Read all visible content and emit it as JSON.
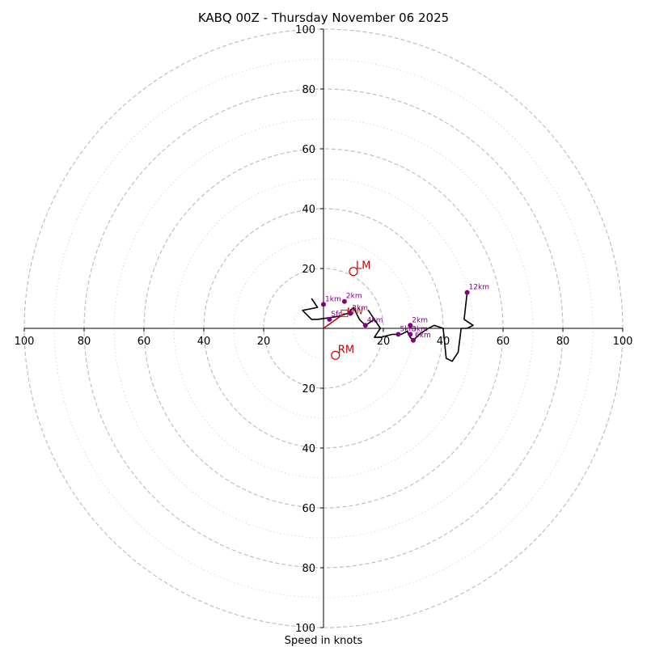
{
  "chart_data": {
    "type": "hodograph",
    "title": "KABQ 00Z - Thursday November 06 2025",
    "xlabel": "Speed in knots",
    "rings": [
      10,
      20,
      30,
      40,
      50,
      60,
      70,
      80,
      90,
      100
    ],
    "ring_labels": [
      "20",
      "40",
      "60",
      "80",
      "100"
    ],
    "axis_limit": 100,
    "colors": {
      "trace": "#000000",
      "markers": "#800080",
      "motion": "#cc0000",
      "grid": "#bbbbbb"
    },
    "hodograph_trace": [
      [
        -4,
        10
      ],
      [
        -2,
        7
      ],
      [
        -7,
        6
      ],
      [
        -4,
        3
      ],
      [
        -2,
        3
      ],
      [
        5,
        4
      ],
      [
        8,
        5
      ],
      [
        10,
        7
      ],
      [
        12,
        3
      ],
      [
        14,
        1
      ],
      [
        17,
        3
      ],
      [
        15,
        6
      ],
      [
        19,
        0
      ],
      [
        17,
        -3
      ],
      [
        19,
        -3
      ],
      [
        23,
        -2
      ],
      [
        26,
        -2
      ],
      [
        28,
        -1
      ],
      [
        29,
        -3
      ],
      [
        30,
        -4
      ],
      [
        32,
        -2
      ],
      [
        35,
        0
      ],
      [
        37,
        1
      ],
      [
        40,
        0
      ],
      [
        41,
        -10
      ],
      [
        43,
        -11
      ],
      [
        45,
        -8
      ],
      [
        46,
        0
      ],
      [
        48,
        0
      ],
      [
        50,
        1
      ],
      [
        47,
        3
      ],
      [
        48,
        12
      ]
    ],
    "markers": [
      {
        "label": "Sfc",
        "u": 2,
        "v": 3
      },
      {
        "label": "1km",
        "u": 0,
        "v": 8
      },
      {
        "label": "2km",
        "u": 7,
        "v": 9
      },
      {
        "label": "3km",
        "u": 9,
        "v": 5
      },
      {
        "label": "4km",
        "u": 14,
        "v": 1
      },
      {
        "label": "5km",
        "u": 25,
        "v": -2
      },
      {
        "label": "2km",
        "u": 29,
        "v": 1
      },
      {
        "label": "3km",
        "u": 29,
        "v": -2
      },
      {
        "label": "6km",
        "u": 30,
        "v": -4
      },
      {
        "label": "12km",
        "u": 48,
        "v": 12
      }
    ],
    "storm_motion": [
      {
        "label": "LM",
        "u": 10,
        "v": 19
      },
      {
        "label": "RM",
        "u": 4,
        "v": -9
      }
    ],
    "mean_wind": {
      "label": "MW",
      "u": 7,
      "v": 5
    },
    "shear_vector": {
      "from": [
        0,
        0
      ],
      "to": [
        7,
        5
      ]
    }
  }
}
